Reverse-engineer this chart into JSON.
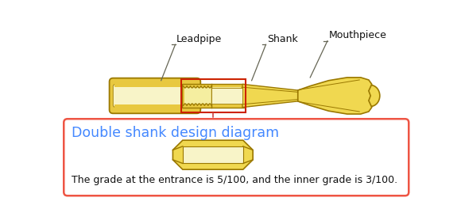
{
  "fig_bg": "#ffffff",
  "labels": {
    "leadpipe": "Leadpipe",
    "shank": "Shank",
    "mouthpiece": "Mouthpiece"
  },
  "box_title": "Double shank design diagram",
  "box_title_color": "#4488ff",
  "box_border_color": "#ee5544",
  "box_bg": "#ffffff",
  "caption": "The grade at the entrance is 5/100, and the inner grade is 3/100.",
  "caption_color": "#111111",
  "gold_light": "#f5eea0",
  "gold_mid": "#e8c840",
  "gold_dark": "#9a7800",
  "gold_fill": "#f0d850",
  "gold_inner": "#f8f4c8",
  "red_box_color": "#cc2200",
  "dashed_line_color": "#cc4444",
  "label_line_color": "#666655",
  "label_text_color": "#111111"
}
